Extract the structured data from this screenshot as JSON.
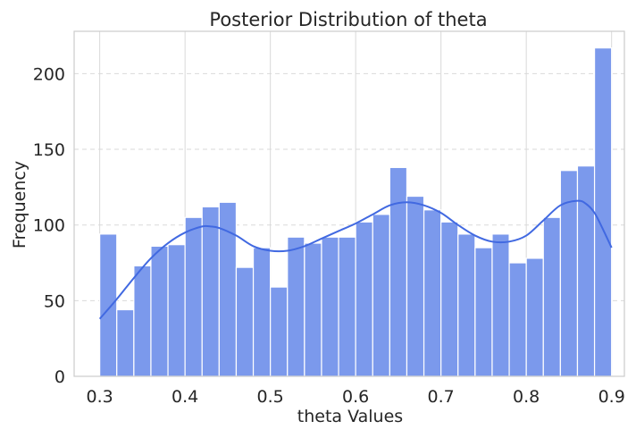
{
  "chart_data": {
    "type": "bar",
    "title": "Posterior Distribution of theta",
    "xlabel": "theta Values",
    "ylabel": "Frequency",
    "xlim": [
      0.27,
      0.915
    ],
    "ylim": [
      0,
      228
    ],
    "xticks": [
      0.3,
      0.4,
      0.5,
      0.6,
      0.7,
      0.8,
      0.9
    ],
    "xtick_labels": [
      "0.3",
      "0.4",
      "0.5",
      "0.6",
      "0.7",
      "0.8",
      "0.9"
    ],
    "yticks": [
      0,
      50,
      100,
      150,
      200
    ],
    "ytick_labels": [
      "0",
      "50",
      "100",
      "150",
      "200"
    ],
    "grid": true,
    "bin_start": 0.3,
    "bin_end": 0.9,
    "bin_values": [
      94,
      44,
      73,
      86,
      87,
      105,
      112,
      115,
      72,
      85,
      59,
      92,
      88,
      92,
      92,
      102,
      107,
      138,
      119,
      110,
      102,
      94,
      85,
      94,
      75,
      78,
      105,
      136,
      139,
      217
    ],
    "kde": {
      "x": [
        0.3,
        0.32,
        0.34,
        0.36,
        0.38,
        0.4,
        0.42,
        0.43,
        0.44,
        0.46,
        0.48,
        0.5,
        0.52,
        0.54,
        0.56,
        0.58,
        0.6,
        0.62,
        0.64,
        0.66,
        0.68,
        0.7,
        0.72,
        0.74,
        0.76,
        0.78,
        0.8,
        0.82,
        0.84,
        0.86,
        0.87,
        0.88,
        0.89,
        0.9
      ],
      "y": [
        38,
        51,
        65,
        78,
        88,
        95,
        99,
        99,
        98,
        93,
        86,
        83,
        83,
        86,
        91,
        96,
        101,
        107,
        113,
        115,
        113,
        108,
        100,
        93,
        89,
        89,
        93,
        103,
        113,
        116,
        114,
        108,
        97,
        85
      ]
    },
    "colors": {
      "bar_fill": "#7b99ec",
      "bar_edge": "#ffffff",
      "kde_line": "#4169e1",
      "grid": "#d9d9d9",
      "axis_spine": "#cccccc"
    }
  }
}
